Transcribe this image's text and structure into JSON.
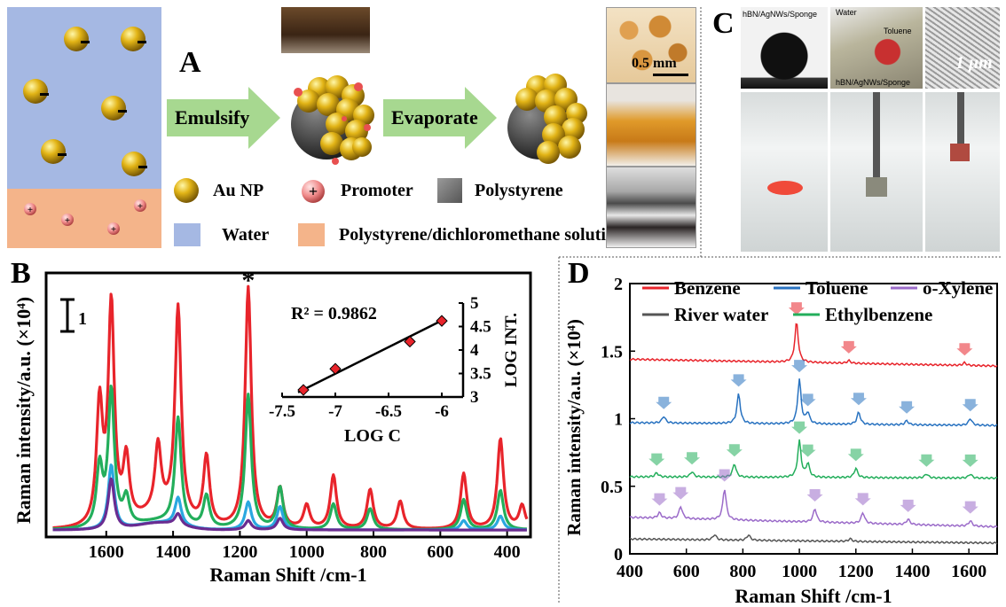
{
  "figure": {
    "panel_a": {
      "label": "A",
      "arrow1": "Emulsify",
      "arrow2": "Evaporate",
      "scale_bar": "0.5 mm",
      "legend": {
        "au": "Au NP",
        "promoter": "Promoter",
        "polystyrene": "Polystyrene",
        "water": "Water",
        "solution": "Polystyrene/dichloromethane solution"
      },
      "charge_neg": "−",
      "charge_pos": "+"
    },
    "panel_c": {
      "label": "C",
      "cap1": "hBN/AgNWs/Sponge",
      "cap2_water": "Water",
      "cap2_toluene": "Toluene",
      "cap2_bottom": "hBN/AgNWs/Sponge",
      "scale": "1 μm"
    },
    "panel_b": {
      "label": "B",
      "scale_bar": "1",
      "asterisk": "*",
      "inset_r2": "R² = 0.9862"
    },
    "panel_d": {
      "label": "D"
    }
  },
  "chart_data": [
    {
      "id": "B",
      "type": "line",
      "xlabel": "Raman Shift /cm-1",
      "ylabel": "Raman intensity/a.u. (×10⁴)",
      "xlim": [
        1780,
        330
      ],
      "x_ticks": [
        1600,
        1400,
        1200,
        1000,
        800,
        600,
        400
      ],
      "series": [
        {
          "color": "#e8242b",
          "peaks": [
            [
              1620,
              5.2
            ],
            [
              1585,
              9.5
            ],
            [
              1540,
              2.7
            ],
            [
              1445,
              2.9
            ],
            [
              1385,
              9.1
            ],
            [
              1300,
              3.0
            ],
            [
              1175,
              10.4
            ],
            [
              1080,
              1.7
            ],
            [
              1000,
              1.0
            ],
            [
              920,
              2.3
            ],
            [
              810,
              1.7
            ],
            [
              720,
              1.2
            ],
            [
              530,
              2.4
            ],
            [
              420,
              3.9
            ],
            [
              355,
              1.0
            ]
          ]
        },
        {
          "color": "#23ae5b",
          "peaks": [
            [
              1620,
              2.6
            ],
            [
              1585,
              5.9
            ],
            [
              1540,
              1.2
            ],
            [
              1385,
              4.6
            ],
            [
              1300,
              1.4
            ],
            [
              1175,
              5.8
            ],
            [
              1080,
              1.8
            ],
            [
              920,
              1.1
            ],
            [
              810,
              0.9
            ],
            [
              530,
              1.3
            ],
            [
              420,
              1.7
            ]
          ]
        },
        {
          "color": "#2aa8e0",
          "peaks": [
            [
              1585,
              2.8
            ],
            [
              1385,
              1.2
            ],
            [
              1175,
              1.2
            ],
            [
              1080,
              1.0
            ],
            [
              530,
              0.4
            ],
            [
              420,
              0.6
            ]
          ]
        },
        {
          "color": "#6a2c91",
          "peaks": [
            [
              1585,
              2.2
            ],
            [
              1385,
              0.5
            ],
            [
              1175,
              0.4
            ],
            [
              1080,
              0.5
            ]
          ]
        }
      ],
      "inset": {
        "type": "scatter",
        "xlabel": "LOG C",
        "ylabel": "LOG INT.",
        "xlim": [
          -7.5,
          -5.8
        ],
        "ylim": [
          3,
          5
        ],
        "x_ticks": [
          -7.5,
          -7,
          -6.5,
          -6
        ],
        "y_ticks": [
          3,
          3.5,
          4,
          4.5,
          5
        ],
        "x": [
          -7.3,
          -7.0,
          -6.3,
          -6.0
        ],
        "y": [
          3.15,
          3.6,
          4.18,
          4.62
        ],
        "fit": {
          "x": [
            -7.35,
            -5.98
          ],
          "y": [
            3.1,
            4.65
          ]
        }
      }
    },
    {
      "id": "D",
      "type": "line",
      "xlabel": "Raman Shift /cm-1",
      "ylabel": "Raman intensity/a.u. (×10⁴)",
      "xlim": [
        400,
        1700
      ],
      "ylim": [
        0,
        2
      ],
      "x_ticks": [
        400,
        600,
        800,
        1000,
        1200,
        1400,
        1600
      ],
      "y_ticks": [
        0,
        0.5,
        1,
        1.5,
        2
      ],
      "legend": [
        "Benzene",
        "Toluene",
        "o-Xylene",
        "River water",
        "Ethylbenzene"
      ],
      "series": [
        {
          "name": "Benzene",
          "color": "#e8242b",
          "baseline": 1.44,
          "end": 1.39,
          "peaks": [
            [
              990,
              0.3
            ],
            [
              1175,
              0.02
            ],
            [
              1585,
              0.02
            ]
          ]
        },
        {
          "name": "Toluene",
          "color": "#2872c0",
          "baseline": 0.97,
          "end": 0.95,
          "peaks": [
            [
              520,
              0.05
            ],
            [
              785,
              0.22
            ],
            [
              1000,
              0.33
            ],
            [
              1030,
              0.08
            ],
            [
              1210,
              0.09
            ],
            [
              1380,
              0.03
            ],
            [
              1605,
              0.05
            ]
          ]
        },
        {
          "name": "Ethylbenzene",
          "color": "#23ae5b",
          "baseline": 0.57,
          "end": 0.56,
          "peaks": [
            [
              495,
              0.03
            ],
            [
              620,
              0.04
            ],
            [
              770,
              0.1
            ],
            [
              1000,
              0.27
            ],
            [
              1030,
              0.1
            ],
            [
              1200,
              0.07
            ],
            [
              1450,
              0.03
            ],
            [
              1605,
              0.03
            ]
          ]
        },
        {
          "name": "o-Xylene",
          "color": "#9b6bc9",
          "baseline": 0.27,
          "end": 0.2,
          "peaks": [
            [
              505,
              0.04
            ],
            [
              580,
              0.09
            ],
            [
              735,
              0.23
            ],
            [
              1055,
              0.1
            ],
            [
              1225,
              0.08
            ],
            [
              1385,
              0.04
            ],
            [
              1605,
              0.04
            ]
          ]
        },
        {
          "name": "River water",
          "color": "#555555",
          "baseline": 0.11,
          "end": 0.08,
          "peaks": [
            [
              700,
              0.04
            ],
            [
              820,
              0.04
            ],
            [
              1180,
              0.02
            ]
          ]
        }
      ]
    }
  ]
}
